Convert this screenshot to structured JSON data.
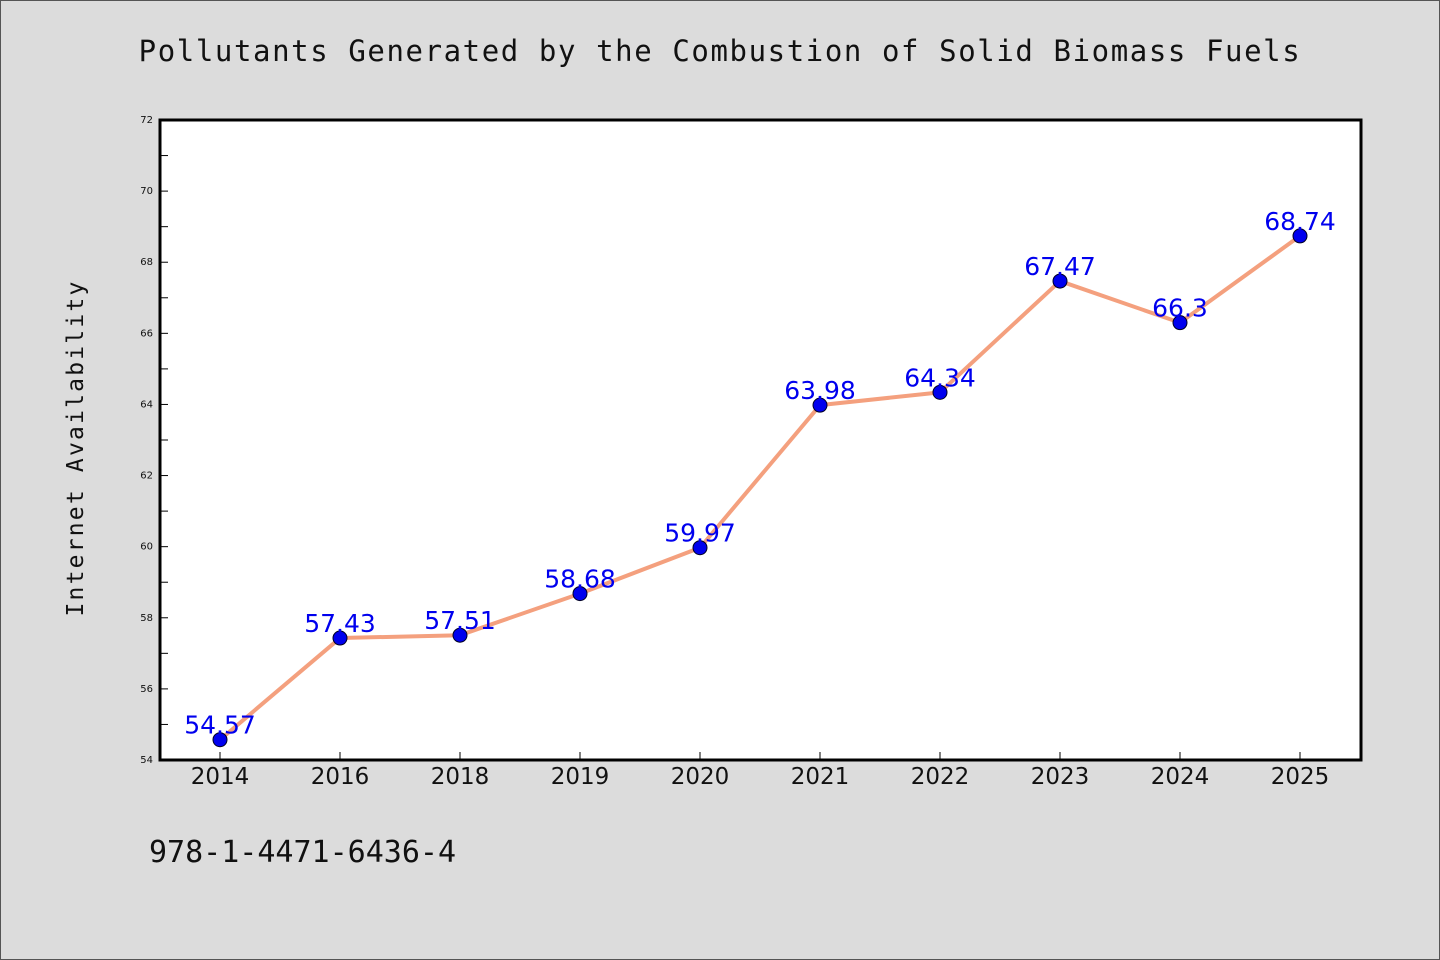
{
  "page": {
    "background": "#dcdcdc",
    "footer_code": "978-1-4471-6436-4"
  },
  "chart_data": {
    "type": "line",
    "title": "Pollutants Generated by the Combustion of Solid Biomass Fuels",
    "xlabel": "",
    "ylabel": "Internet Availability",
    "categories": [
      "2014",
      "2016",
      "2018",
      "2019",
      "2020",
      "2021",
      "2022",
      "2023",
      "2024",
      "2025"
    ],
    "series": [
      {
        "values": [
          54.57,
          57.43,
          57.51,
          58.68,
          59.97,
          63.98,
          64.34,
          67.47,
          66.3,
          68.74
        ],
        "labels": [
          "54.57",
          "57.43",
          "57.51",
          "58.68",
          "59.97",
          "63.98",
          "64.34",
          "67.47",
          "66.3",
          "68.74"
        ],
        "line_color": "#f4a07e",
        "marker_color": "#0000ee",
        "label_color": "#0000ee"
      }
    ],
    "ylim": [
      54,
      72
    ],
    "yticks": [
      "54",
      "56",
      "58",
      "60",
      "62",
      "64",
      "66",
      "68",
      "70",
      "72"
    ],
    "grid": false,
    "legend": "none",
    "data_labels": true
  }
}
